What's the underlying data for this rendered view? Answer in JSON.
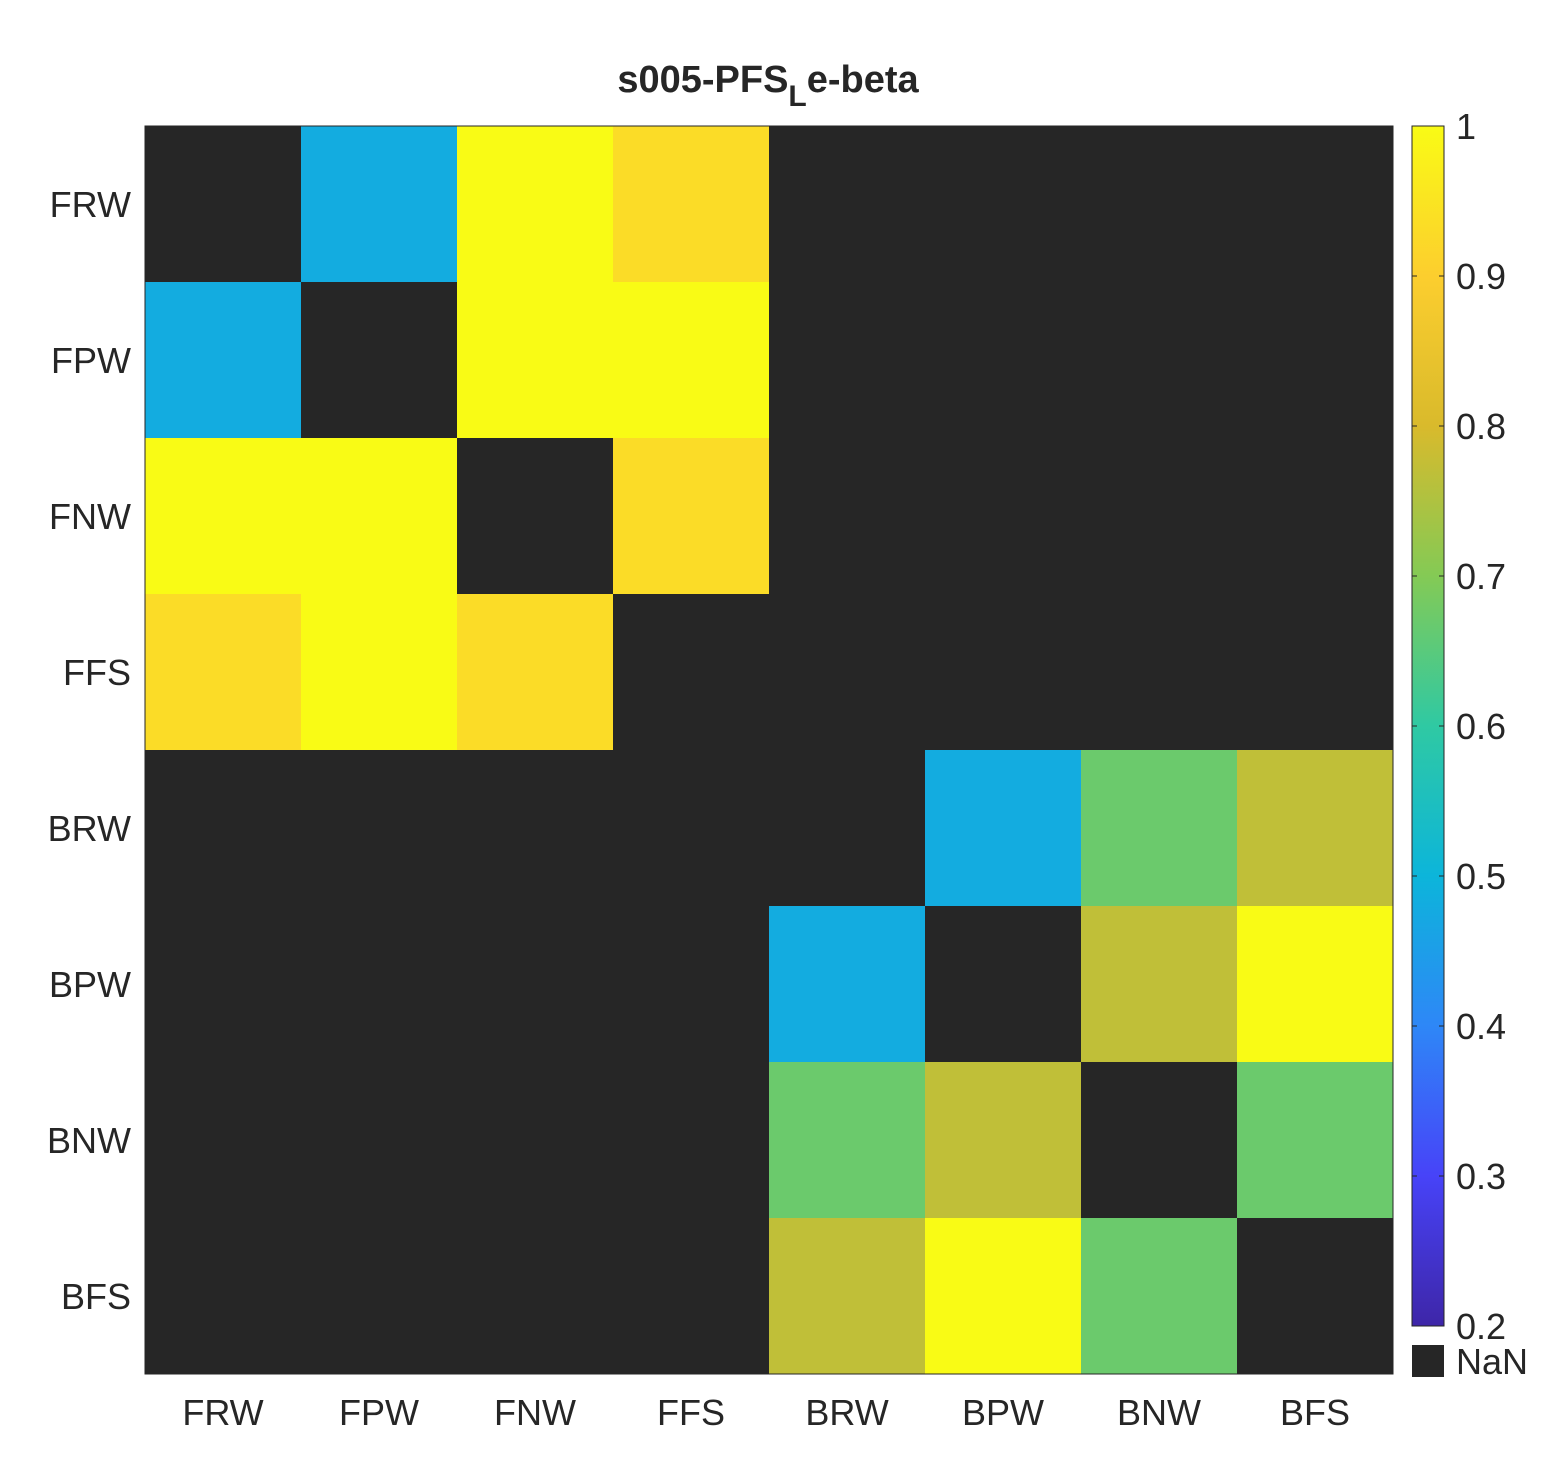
{
  "chart_data": {
    "type": "heatmap",
    "title": "s005-PFS",
    "title_subscript": "L",
    "title_suffix": "e-beta",
    "x_categories": [
      "FRW",
      "FPW",
      "FNW",
      "FFS",
      "BRW",
      "BPW",
      "BNW",
      "BFS"
    ],
    "y_categories": [
      "FRW",
      "FPW",
      "FNW",
      "FFS",
      "BRW",
      "BPW",
      "BNW",
      "BFS"
    ],
    "values": [
      [
        null,
        0.48,
        1.0,
        0.93,
        null,
        null,
        null,
        null
      ],
      [
        0.48,
        null,
        1.0,
        1.0,
        null,
        null,
        null,
        null
      ],
      [
        1.0,
        1.0,
        null,
        0.93,
        null,
        null,
        null,
        null
      ],
      [
        0.93,
        1.0,
        0.93,
        null,
        null,
        null,
        null,
        null
      ],
      [
        null,
        null,
        null,
        null,
        null,
        0.48,
        0.67,
        0.77
      ],
      [
        null,
        null,
        null,
        null,
        0.48,
        null,
        0.77,
        1.0
      ],
      [
        null,
        null,
        null,
        null,
        0.67,
        0.77,
        null,
        0.67
      ],
      [
        null,
        null,
        null,
        null,
        0.77,
        1.0,
        0.67,
        null
      ]
    ],
    "colorbar": {
      "min": 0.2,
      "max": 1.0,
      "ticks": [
        "0.2",
        "0.3",
        "0.4",
        "0.5",
        "0.6",
        "0.7",
        "0.8",
        "0.9",
        "1"
      ],
      "nan_label": "NaN",
      "nan_color": "#262626",
      "colormap": [
        "#3e26a8",
        "#4743f8",
        "#2e87f7",
        "#0cb5da",
        "#2fc9a3",
        "#84ca55",
        "#d9ba2c",
        "#fcce2e",
        "#f9fb15"
      ]
    }
  }
}
